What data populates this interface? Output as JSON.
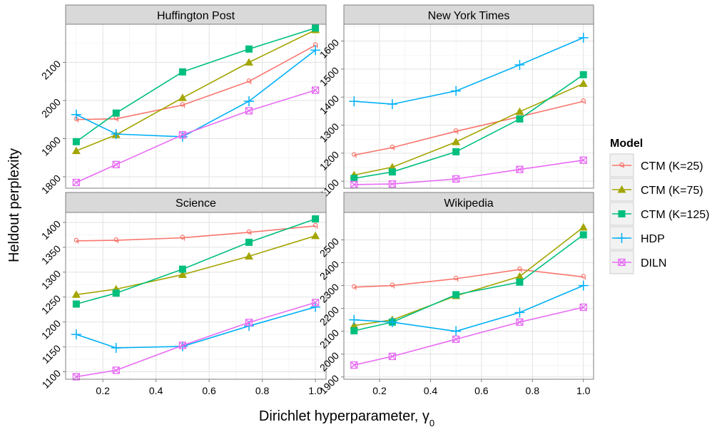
{
  "chart_data": {
    "type": "line",
    "x_axis": {
      "label_prefix": "Dirichlet hyperparameter, ",
      "label_symbol": "γ",
      "label_subscript": "0",
      "ticks": [
        "0.2",
        "0.4",
        "0.6",
        "0.8",
        "1.0"
      ],
      "xlim": [
        0.06,
        1.04
      ]
    },
    "ylabel": "Heldout perplexity",
    "x": [
      0.1,
      0.25,
      0.5,
      0.75,
      1.0
    ],
    "legend": {
      "title": "Model",
      "position": "right"
    },
    "series_styles": [
      {
        "name": "CTM (K=25)",
        "color": "#F8766D",
        "marker": "open-q"
      },
      {
        "name": "CTM (K=75)",
        "color": "#A3A500",
        "marker": "triangle"
      },
      {
        "name": "CTM (K=125)",
        "color": "#00BF7D",
        "marker": "square"
      },
      {
        "name": "HDP",
        "color": "#00B0F6",
        "marker": "plus"
      },
      {
        "name": "DILN",
        "color": "#E76BF3",
        "marker": "boxed-x"
      }
    ],
    "panels": [
      {
        "title": "Huffington Post",
        "ylim": [
          1770,
          2200
        ],
        "yticks": [
          1800,
          1900,
          2000,
          2100
        ],
        "series": [
          {
            "name": "CTM (K=25)",
            "values": [
              1950,
              1952,
              1988,
              2050,
              2145
            ]
          },
          {
            "name": "CTM (K=75)",
            "values": [
              1868,
              1910,
              2007,
              2100,
              2185
            ]
          },
          {
            "name": "CTM (K=125)",
            "values": [
              1892,
              1967,
              2075,
              2135,
              2190
            ]
          },
          {
            "name": "HDP",
            "values": [
              1963,
              1912,
              1905,
              1998,
              2132
            ]
          },
          {
            "name": "DILN",
            "values": [
              1785,
              1832,
              1910,
              1973,
              2027
            ]
          }
        ]
      },
      {
        "title": "New York Times",
        "ylim": [
          1075,
          1660
        ],
        "yticks": [
          1100,
          1200,
          1300,
          1400,
          1500,
          1600
        ],
        "series": [
          {
            "name": "CTM (K=25)",
            "values": [
              1193,
              1220,
              1278,
              1330,
              1385
            ]
          },
          {
            "name": "CTM (K=75)",
            "values": [
              1122,
              1150,
              1240,
              1348,
              1448
            ]
          },
          {
            "name": "CTM (K=125)",
            "values": [
              1110,
              1133,
              1205,
              1322,
              1480
            ]
          },
          {
            "name": "HDP",
            "values": [
              1385,
              1375,
              1422,
              1515,
              1612
            ]
          },
          {
            "name": "DILN",
            "values": [
              1088,
              1090,
              1108,
              1142,
              1175
            ]
          }
        ]
      },
      {
        "title": "Science",
        "ylim": [
          1085,
          1420
        ],
        "yticks": [
          1100,
          1150,
          1200,
          1250,
          1300,
          1350,
          1400
        ],
        "series": [
          {
            "name": "CTM (K=25)",
            "values": [
              1363,
              1364,
              1369,
              1380,
              1393
            ]
          },
          {
            "name": "CTM (K=75)",
            "values": [
              1255,
              1266,
              1295,
              1332,
              1373
            ]
          },
          {
            "name": "CTM (K=125)",
            "values": [
              1236,
              1258,
              1306,
              1360,
              1407
            ]
          },
          {
            "name": "HDP",
            "values": [
              1175,
              1148,
              1151,
              1192,
              1230
            ]
          },
          {
            "name": "DILN",
            "values": [
              1090,
              1103,
              1153,
              1199,
              1239
            ]
          }
        ]
      },
      {
        "title": "Wikipedia",
        "ylim": [
          1890,
          2620
        ],
        "yticks": [
          1900,
          2000,
          2100,
          2200,
          2300,
          2400,
          2500
        ],
        "series": [
          {
            "name": "CTM (K=25)",
            "values": [
              2293,
              2300,
              2330,
              2370,
              2338
            ]
          },
          {
            "name": "CTM (K=75)",
            "values": [
              2125,
              2150,
              2255,
              2340,
              2555
            ]
          },
          {
            "name": "CTM (K=125)",
            "values": [
              2102,
              2140,
              2260,
              2315,
              2522
            ]
          },
          {
            "name": "HDP",
            "values": [
              2150,
              2140,
              2100,
              2182,
              2300
            ]
          },
          {
            "name": "DILN",
            "values": [
              1952,
              1990,
              2065,
              2140,
              2205
            ]
          }
        ]
      }
    ]
  }
}
